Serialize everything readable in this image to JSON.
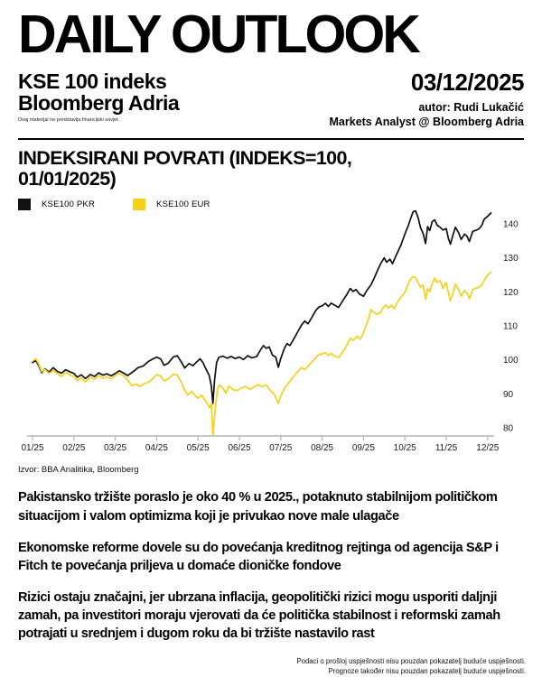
{
  "header": {
    "title": "DAILY OUTLOOK",
    "subject": "KSE 100 indeks",
    "brand": "Bloomberg Adria",
    "mini_disclaimer": "Ovaj materijal ne predstavlja financijski savjet.",
    "date": "03/12/2025",
    "author": "autor: Rudi Lukačić",
    "author_role": "Markets Analyst @ Bloomberg Adria"
  },
  "section": {
    "title": "INDEKSIRANI POVRATI (INDEKS=100, 01/01/2025)"
  },
  "legend": [
    {
      "label": "KSE100 PKR",
      "color": "#111111"
    },
    {
      "label": "KSE100 EUR",
      "color": "#F7D117"
    }
  ],
  "chart_data": {
    "type": "line",
    "title": "INDEKSIRANI POVRATI (INDEKS=100, 01/01/2025)",
    "x_unit": "months since 01/01/2025",
    "x_ticks": [
      "01/25",
      "02/25",
      "03/25",
      "04/25",
      "05/25",
      "06/25",
      "07/25",
      "08/25",
      "09/25",
      "10/25",
      "11/25",
      "12/25"
    ],
    "y_ticks": [
      80,
      90,
      100,
      110,
      120,
      130,
      140
    ],
    "ylim": [
      76,
      146
    ],
    "grid": false,
    "legend_position": "top-left",
    "axis_color": "#b5b5b5",
    "series": [
      {
        "name": "KSE100 PKR",
        "color": "#111111",
        "points": [
          [
            0,
            99.2
          ],
          [
            0.08,
            99.8
          ],
          [
            0.15,
            98.3
          ],
          [
            0.22,
            96.2
          ],
          [
            0.3,
            97.4
          ],
          [
            0.4,
            96.4
          ],
          [
            0.5,
            97.7
          ],
          [
            0.6,
            96.6
          ],
          [
            0.7,
            96.1
          ],
          [
            0.8,
            97.1
          ],
          [
            0.9,
            96.5
          ],
          [
            1,
            96
          ],
          [
            1.08,
            94.9
          ],
          [
            1.18,
            95.6
          ],
          [
            1.28,
            94.5
          ],
          [
            1.4,
            95.7
          ],
          [
            1.5,
            95.1
          ],
          [
            1.6,
            96.2
          ],
          [
            1.7,
            95.5
          ],
          [
            1.8,
            95.9
          ],
          [
            1.9,
            95.3
          ],
          [
            2,
            96
          ],
          [
            2.1,
            96.8
          ],
          [
            2.2,
            96.1
          ],
          [
            2.3,
            95.4
          ],
          [
            2.42,
            96.4
          ],
          [
            2.55,
            97.7
          ],
          [
            2.68,
            98.2
          ],
          [
            2.8,
            99.5
          ],
          [
            2.9,
            100.2
          ],
          [
            3,
            100.8
          ],
          [
            3.1,
            100.2
          ],
          [
            3.18,
            98.4
          ],
          [
            3.28,
            99
          ],
          [
            3.4,
            100.8
          ],
          [
            3.5,
            101.2
          ],
          [
            3.6,
            99.3
          ],
          [
            3.68,
            97.6
          ],
          [
            3.78,
            98.9
          ],
          [
            3.88,
            98.3
          ],
          [
            3.95,
            99.2
          ],
          [
            4.05,
            100.3
          ],
          [
            4.12,
            99.2
          ],
          [
            4.2,
            97.1
          ],
          [
            4.27,
            95.4
          ],
          [
            4.32,
            92.4
          ],
          [
            4.36,
            87.2
          ],
          [
            4.4,
            94
          ],
          [
            4.45,
            99.2
          ],
          [
            4.5,
            100.7
          ],
          [
            4.6,
            101.1
          ],
          [
            4.7,
            100.5
          ],
          [
            4.8,
            101
          ],
          [
            4.9,
            100.4
          ],
          [
            5,
            100.8
          ],
          [
            5.1,
            100.1
          ],
          [
            5.2,
            101.2
          ],
          [
            5.3,
            100.6
          ],
          [
            5.42,
            101
          ],
          [
            5.52,
            103.1
          ],
          [
            5.58,
            104.2
          ],
          [
            5.65,
            103.4
          ],
          [
            5.72,
            103.8
          ],
          [
            5.8,
            101.4
          ],
          [
            5.88,
            100.8
          ],
          [
            5.94,
            97.8
          ],
          [
            6,
            100.4
          ],
          [
            6.08,
            103.2
          ],
          [
            6.15,
            104.8
          ],
          [
            6.22,
            104.2
          ],
          [
            6.3,
            105.8
          ],
          [
            6.4,
            108
          ],
          [
            6.5,
            110.2
          ],
          [
            6.58,
            111.4
          ],
          [
            6.66,
            110.6
          ],
          [
            6.75,
            112.4
          ],
          [
            6.85,
            114.6
          ],
          [
            6.93,
            115.6
          ],
          [
            7,
            115.9
          ],
          [
            7.08,
            116.6
          ],
          [
            7.15,
            115.7
          ],
          [
            7.22,
            116.7
          ],
          [
            7.3,
            116.1
          ],
          [
            7.4,
            115.4
          ],
          [
            7.5,
            117.4
          ],
          [
            7.6,
            119.3
          ],
          [
            7.68,
            121
          ],
          [
            7.75,
            120.1
          ],
          [
            7.82,
            120.7
          ],
          [
            7.9,
            119.4
          ],
          [
            8,
            118.7
          ],
          [
            8.08,
            120.4
          ],
          [
            8.18,
            122
          ],
          [
            8.28,
            124.6
          ],
          [
            8.35,
            126.6
          ],
          [
            8.42,
            128.4
          ],
          [
            8.5,
            130
          ],
          [
            8.56,
            128.7
          ],
          [
            8.64,
            129.6
          ],
          [
            8.7,
            128.3
          ],
          [
            8.8,
            131
          ],
          [
            8.9,
            133.6
          ],
          [
            9,
            137
          ],
          [
            9.08,
            139.4
          ],
          [
            9.14,
            141.6
          ],
          [
            9.2,
            143.6
          ],
          [
            9.26,
            143.8
          ],
          [
            9.32,
            141.8
          ],
          [
            9.38,
            138.8
          ],
          [
            9.44,
            137.2
          ],
          [
            9.5,
            134.2
          ],
          [
            9.55,
            139.2
          ],
          [
            9.6,
            138
          ],
          [
            9.66,
            140.6
          ],
          [
            9.72,
            141.2
          ],
          [
            9.78,
            139.6
          ],
          [
            9.85,
            139
          ],
          [
            9.92,
            138.2
          ],
          [
            10,
            138.6
          ],
          [
            10.05,
            135.8
          ],
          [
            10.1,
            134
          ],
          [
            10.16,
            136.6
          ],
          [
            10.22,
            139
          ],
          [
            10.3,
            137.4
          ],
          [
            10.36,
            135.4
          ],
          [
            10.44,
            137
          ],
          [
            10.5,
            136.4
          ],
          [
            10.56,
            134.8
          ],
          [
            10.64,
            137.8
          ],
          [
            10.72,
            138.1
          ],
          [
            10.8,
            138.6
          ],
          [
            10.86,
            139.6
          ],
          [
            10.92,
            141.4
          ],
          [
            11,
            142.2
          ],
          [
            11.08,
            143.2
          ]
        ]
      },
      {
        "name": "KSE100 EUR",
        "color": "#F7D117",
        "points": [
          [
            0,
            99.6
          ],
          [
            0.08,
            100.3
          ],
          [
            0.15,
            98.8
          ],
          [
            0.22,
            96.5
          ],
          [
            0.3,
            97.2
          ],
          [
            0.4,
            96
          ],
          [
            0.5,
            96.9
          ],
          [
            0.6,
            95.9
          ],
          [
            0.7,
            95.1
          ],
          [
            0.8,
            96.4
          ],
          [
            0.9,
            95.6
          ],
          [
            1,
            95.1
          ],
          [
            1.08,
            93.8
          ],
          [
            1.18,
            94.7
          ],
          [
            1.28,
            93.5
          ],
          [
            1.4,
            94.9
          ],
          [
            1.5,
            94.3
          ],
          [
            1.6,
            95.4
          ],
          [
            1.7,
            94.6
          ],
          [
            1.8,
            95
          ],
          [
            1.9,
            94.4
          ],
          [
            2,
            95.4
          ],
          [
            2.1,
            96.1
          ],
          [
            2.2,
            95.3
          ],
          [
            2.3,
            94.1
          ],
          [
            2.4,
            92.4
          ],
          [
            2.5,
            92.8
          ],
          [
            2.6,
            92.2
          ],
          [
            2.7,
            93
          ],
          [
            2.8,
            93.4
          ],
          [
            2.9,
            94.4
          ],
          [
            3,
            95.7
          ],
          [
            3.1,
            95.2
          ],
          [
            3.18,
            93.8
          ],
          [
            3.28,
            94.4
          ],
          [
            3.4,
            95.8
          ],
          [
            3.5,
            95.5
          ],
          [
            3.6,
            93.3
          ],
          [
            3.68,
            91.1
          ],
          [
            3.75,
            89.7
          ],
          [
            3.85,
            90.7
          ],
          [
            3.95,
            89.2
          ],
          [
            4,
            88.7
          ],
          [
            4.08,
            89.6
          ],
          [
            4.15,
            88.5
          ],
          [
            4.22,
            87.2
          ],
          [
            4.28,
            86
          ],
          [
            4.32,
            87
          ],
          [
            4.36,
            77.8
          ],
          [
            4.42,
            86
          ],
          [
            4.47,
            91.4
          ],
          [
            4.52,
            92.6
          ],
          [
            4.6,
            91.7
          ],
          [
            4.67,
            90.2
          ],
          [
            4.75,
            92.3
          ],
          [
            4.85,
            91.2
          ],
          [
            4.95,
            91
          ],
          [
            5.05,
            91.7
          ],
          [
            5.15,
            92.2
          ],
          [
            5.25,
            91.3
          ],
          [
            5.35,
            92
          ],
          [
            5.45,
            92.7
          ],
          [
            5.55,
            92.1
          ],
          [
            5.65,
            92.6
          ],
          [
            5.75,
            91
          ],
          [
            5.85,
            89.8
          ],
          [
            5.94,
            87.2
          ],
          [
            6,
            89.4
          ],
          [
            6.1,
            91.8
          ],
          [
            6.2,
            93.4
          ],
          [
            6.3,
            95
          ],
          [
            6.4,
            96.4
          ],
          [
            6.5,
            97.7
          ],
          [
            6.58,
            97.1
          ],
          [
            6.68,
            98.4
          ],
          [
            6.8,
            100
          ],
          [
            6.9,
            101.4
          ],
          [
            7,
            101.8
          ],
          [
            7.08,
            102.2
          ],
          [
            7.15,
            101.3
          ],
          [
            7.22,
            101.9
          ],
          [
            7.3,
            101.1
          ],
          [
            7.4,
            100.7
          ],
          [
            7.5,
            102.4
          ],
          [
            7.6,
            104.4
          ],
          [
            7.68,
            106.4
          ],
          [
            7.75,
            105.7
          ],
          [
            7.85,
            107
          ],
          [
            7.92,
            106.1
          ],
          [
            8,
            108
          ],
          [
            8.06,
            110
          ],
          [
            8.12,
            112
          ],
          [
            8.18,
            114.8
          ],
          [
            8.24,
            114
          ],
          [
            8.32,
            113.4
          ],
          [
            8.4,
            113.8
          ],
          [
            8.48,
            115.4
          ],
          [
            8.54,
            116.1
          ],
          [
            8.6,
            115.3
          ],
          [
            8.68,
            116
          ],
          [
            8.74,
            115.1
          ],
          [
            8.82,
            117
          ],
          [
            8.9,
            118.4
          ],
          [
            9,
            119.8
          ],
          [
            9.08,
            122.4
          ],
          [
            9.14,
            123.8
          ],
          [
            9.2,
            124.5
          ],
          [
            9.26,
            124.1
          ],
          [
            9.32,
            122.6
          ],
          [
            9.38,
            121.4
          ],
          [
            9.44,
            122
          ],
          [
            9.5,
            117.8
          ],
          [
            9.55,
            121
          ],
          [
            9.6,
            120.1
          ],
          [
            9.66,
            122.4
          ],
          [
            9.72,
            124
          ],
          [
            9.78,
            122.7
          ],
          [
            9.85,
            123.4
          ],
          [
            9.92,
            121
          ],
          [
            10,
            122.7
          ],
          [
            10.05,
            119.8
          ],
          [
            10.1,
            117.4
          ],
          [
            10.16,
            119.4
          ],
          [
            10.22,
            122.2
          ],
          [
            10.3,
            120.7
          ],
          [
            10.36,
            118.7
          ],
          [
            10.44,
            120.4
          ],
          [
            10.5,
            119.7
          ],
          [
            10.56,
            118
          ],
          [
            10.64,
            120.7
          ],
          [
            10.72,
            121.1
          ],
          [
            10.8,
            121.4
          ],
          [
            10.86,
            122
          ],
          [
            10.92,
            123.4
          ],
          [
            11,
            125
          ],
          [
            11.08,
            125.8
          ]
        ]
      }
    ]
  },
  "source": "Izvor: BBA Analitika, Bloomberg",
  "paragraphs": [
    "Pakistansko tržište poraslo je oko 40 % u 2025., potaknuto stabilnijom političkom situacijom i valom optimizma koji je privukao nove male ulagače",
    "Ekonomske reforme dovele su do povećanja kreditnog rejtinga od agencija S&P i Fitch te povećanja priljeva u domaće dioničke fondove",
    "Rizici ostaju značajni, jer ubrzana inflacija, geopolitički rizici mogu usporiti daljnji zamah, pa investitori moraju vjerovati da će politička stabilnost i reformski zamah potrajati u srednjem i dugom roku da bi tržište nastavilo rast"
  ],
  "footnote": {
    "line1": "Podaci o prošloj uspješnosti nisu pouzdan pokazatelj buduće uspješnosti.",
    "line2": "Prognoze također nisu pouzdan pokazatelj buduće uspješnosti."
  }
}
